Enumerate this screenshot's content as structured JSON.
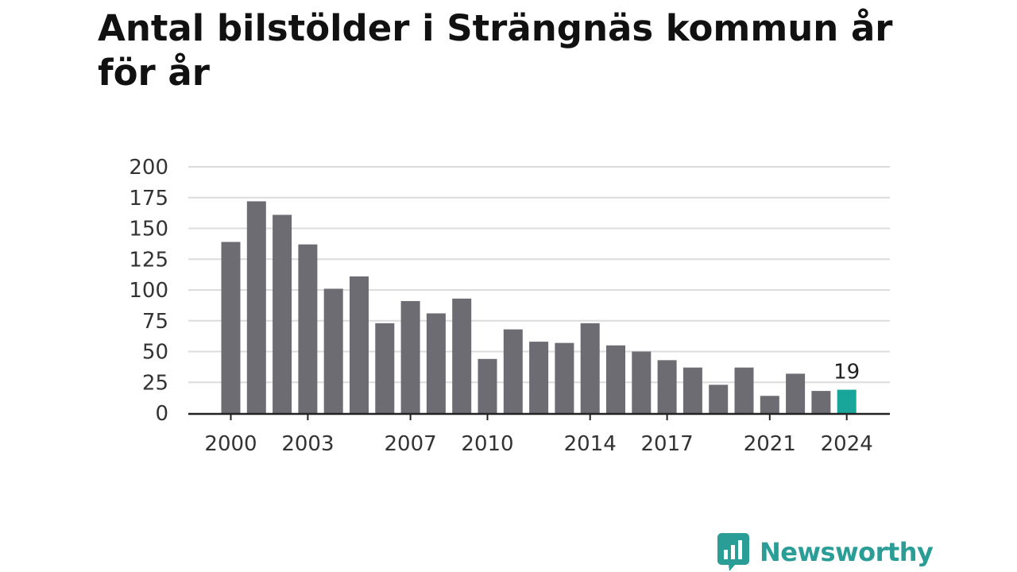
{
  "title": "Antal bilstölder i Strängnäs kommun år för år",
  "brand": "Newsworthy",
  "colors": {
    "bar": "#6d6c72",
    "highlight": "#18a59a",
    "grid": "#dcdcdc",
    "axis": "#222222",
    "brand": "#2a9d96"
  },
  "chart_data": {
    "type": "bar",
    "title": "Antal bilstölder i Strängnäs kommun år för år",
    "xlabel": "",
    "ylabel": "",
    "categories": [
      2000,
      2001,
      2002,
      2003,
      2004,
      2005,
      2006,
      2007,
      2008,
      2009,
      2010,
      2011,
      2012,
      2013,
      2014,
      2015,
      2016,
      2017,
      2018,
      2019,
      2020,
      2021,
      2022,
      2023,
      2024
    ],
    "values": [
      139,
      172,
      161,
      137,
      101,
      111,
      73,
      91,
      81,
      93,
      44,
      68,
      58,
      57,
      73,
      55,
      50,
      43,
      37,
      23,
      37,
      14,
      32,
      18,
      19
    ],
    "x_tick_labels": [
      "2000",
      "2003",
      "2007",
      "2010",
      "2014",
      "2017",
      "2021",
      "2024"
    ],
    "y_ticks": [
      0,
      25,
      50,
      75,
      100,
      125,
      150,
      175,
      200
    ],
    "ylim": [
      0,
      200
    ],
    "grid": true,
    "legend": false,
    "highlight_index": 24,
    "annotations": [
      {
        "category": 2024,
        "text": "19"
      }
    ]
  }
}
